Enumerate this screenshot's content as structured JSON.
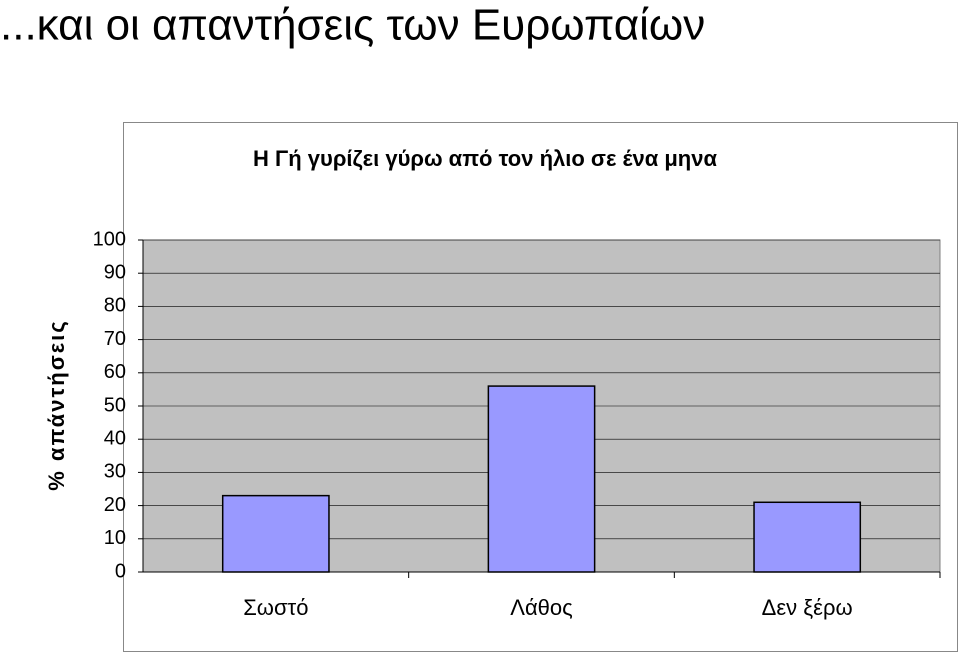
{
  "heading": "...και οι απαντήσεις των Ευρωπαίων",
  "chart_data": {
    "type": "bar",
    "title": "Η Γή γυρίζει γύρω από τον ήλιο σε ένα μηνα",
    "y_label": "% απάντήσεις",
    "categories": [
      "Σωστό",
      "Λάθος",
      "Δεν ξέρω"
    ],
    "values": [
      23,
      56,
      21
    ],
    "color": "#9999ff",
    "ylim": [
      0,
      100
    ],
    "yticks": [
      0,
      10,
      20,
      30,
      40,
      50,
      60,
      70,
      80,
      90,
      100
    ],
    "grid": true
  }
}
